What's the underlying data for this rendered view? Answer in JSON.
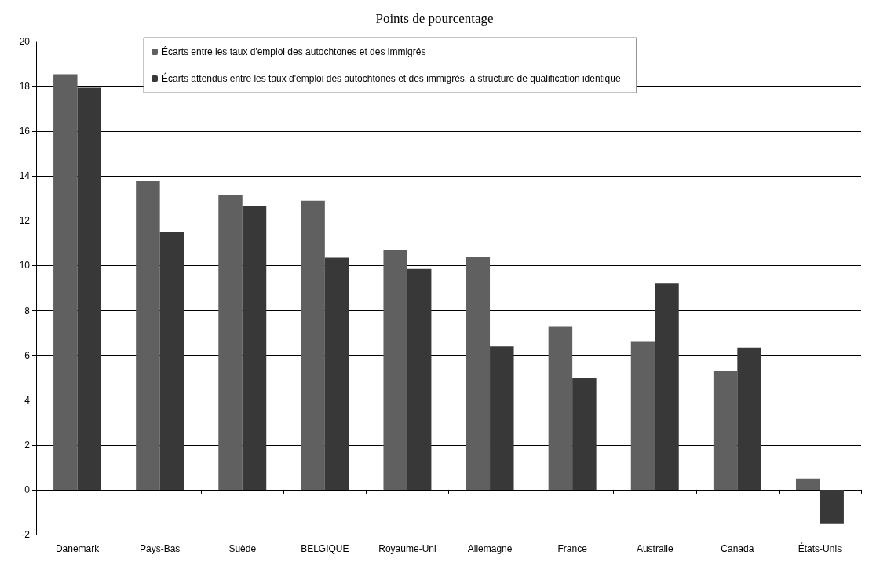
{
  "chart_data": {
    "type": "bar",
    "title": "Points de pourcentage",
    "categories": [
      "Danemark",
      "Pays-Bas",
      "Suède",
      "BELGIQUE",
      "Royaume-Uni",
      "Allemagne",
      "France",
      "Australie",
      "Canada",
      "États-Unis"
    ],
    "series": [
      {
        "name": "Écarts entre les taux d'emploi des autochtones et des immigrés",
        "color": "#606060",
        "values": [
          18.55,
          13.8,
          13.15,
          12.9,
          10.7,
          10.4,
          7.3,
          6.6,
          5.3,
          0.5
        ]
      },
      {
        "name": "Écarts attendus entre les taux d'emploi des autochtones et des immigrés, à structure de qualification identique",
        "color": "#383838",
        "values": [
          17.95,
          11.5,
          12.65,
          10.35,
          9.85,
          6.4,
          5.0,
          9.2,
          6.35,
          -1.5
        ]
      }
    ],
    "ylim": [
      -2,
      20
    ],
    "yticks": [
      -2,
      0,
      2,
      4,
      6,
      8,
      10,
      12,
      14,
      16,
      18,
      20
    ],
    "grid": "y",
    "legend": "top"
  }
}
